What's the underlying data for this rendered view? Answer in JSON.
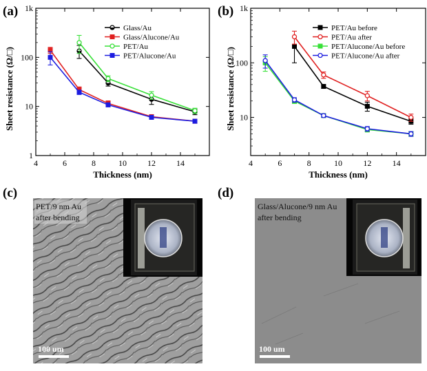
{
  "panels": {
    "a": "(a)",
    "b": "(b)",
    "c": "(c)",
    "d": "(d)"
  },
  "colors": {
    "black": "#000000",
    "red": "#e02020",
    "green": "#38e038",
    "blue": "#1c1ce0"
  },
  "chart_data": [
    {
      "id": "a",
      "type": "line",
      "xlabel": "Thickness (nm)",
      "ylabel": "Sheet resistance (Ω/□)",
      "xlim": [
        4,
        16
      ],
      "ylim": [
        1,
        1000
      ],
      "yscale": "log",
      "xticks": [
        "4",
        "6",
        "8",
        "10",
        "12",
        "14"
      ],
      "yticks": [
        "1",
        "10",
        "100",
        "1k"
      ],
      "legend_position": "top-right",
      "series": [
        {
          "name": "Glass/Au",
          "color": "#000000",
          "marker": "circle-half",
          "x": [
            7,
            9,
            12,
            15
          ],
          "y": [
            135,
            30,
            14,
            7.8
          ],
          "err": [
            40,
            4,
            3,
            1
          ]
        },
        {
          "name": "Glass/Alucone/Au",
          "color": "#e02020",
          "marker": "square",
          "x": [
            5,
            7,
            9,
            12,
            15
          ],
          "y": [
            140,
            22,
            11.5,
            6.2,
            5
          ],
          "err": [
            20,
            3,
            1.5,
            0.5,
            0.4
          ]
        },
        {
          "name": "PET/Au",
          "color": "#38e038",
          "marker": "circle-open",
          "x": [
            7,
            9,
            12,
            15
          ],
          "y": [
            200,
            37,
            17,
            8.2
          ],
          "err": [
            80,
            5,
            3,
            1
          ]
        },
        {
          "name": "PET/Alucone/Au",
          "color": "#1c1ce0",
          "marker": "square",
          "x": [
            5,
            7,
            9,
            12,
            15
          ],
          "y": [
            100,
            19.5,
            10.8,
            6,
            5
          ],
          "err": [
            30,
            2,
            1,
            0.5,
            0.4
          ]
        }
      ]
    },
    {
      "id": "b",
      "type": "line",
      "xlabel": "Thickness (nm)",
      "ylabel": "Sheet resistance (Ω/□)",
      "xlim": [
        4,
        16
      ],
      "ylim": [
        2,
        1000
      ],
      "yscale": "log",
      "xticks": [
        "4",
        "6",
        "8",
        "10",
        "12",
        "14"
      ],
      "yticks": [
        "10",
        "100",
        "1k"
      ],
      "legend_position": "top-right",
      "series": [
        {
          "name": "PET/Au  before",
          "color": "#000000",
          "marker": "square",
          "x": [
            7,
            9,
            12,
            15
          ],
          "y": [
            200,
            37,
            16,
            8.5
          ],
          "err": [
            100,
            3,
            3,
            1
          ]
        },
        {
          "name": "PET/Au  after",
          "color": "#e02020",
          "marker": "circle-open",
          "x": [
            7,
            9,
            12,
            15
          ],
          "y": [
            300,
            60,
            25,
            10
          ],
          "err": [
            80,
            8,
            5,
            1.5
          ]
        },
        {
          "name": "PET/Alucone/Au  before",
          "color": "#38e038",
          "marker": "square",
          "x": [
            5,
            7,
            9,
            12,
            15
          ],
          "y": [
            100,
            20,
            10.8,
            6,
            5
          ],
          "err": [
            30,
            2,
            0.8,
            0.6,
            0.5
          ]
        },
        {
          "name": "PET/Alucone/Au  after",
          "color": "#1c1ce0",
          "marker": "circle-open",
          "x": [
            5,
            7,
            9,
            12,
            15
          ],
          "y": [
            110,
            21,
            10.8,
            6.2,
            5
          ],
          "err": [
            30,
            2,
            0.8,
            0.6,
            0.5
          ]
        }
      ]
    }
  ],
  "images": {
    "c": {
      "caption_line1": "PET/9 nm Au",
      "caption_line2": "after bending",
      "scale_label": "100 um"
    },
    "d": {
      "caption_line1": "Glass/Alucone/9 nm Au",
      "caption_line2": "after bending",
      "scale_label": "100 um"
    }
  }
}
